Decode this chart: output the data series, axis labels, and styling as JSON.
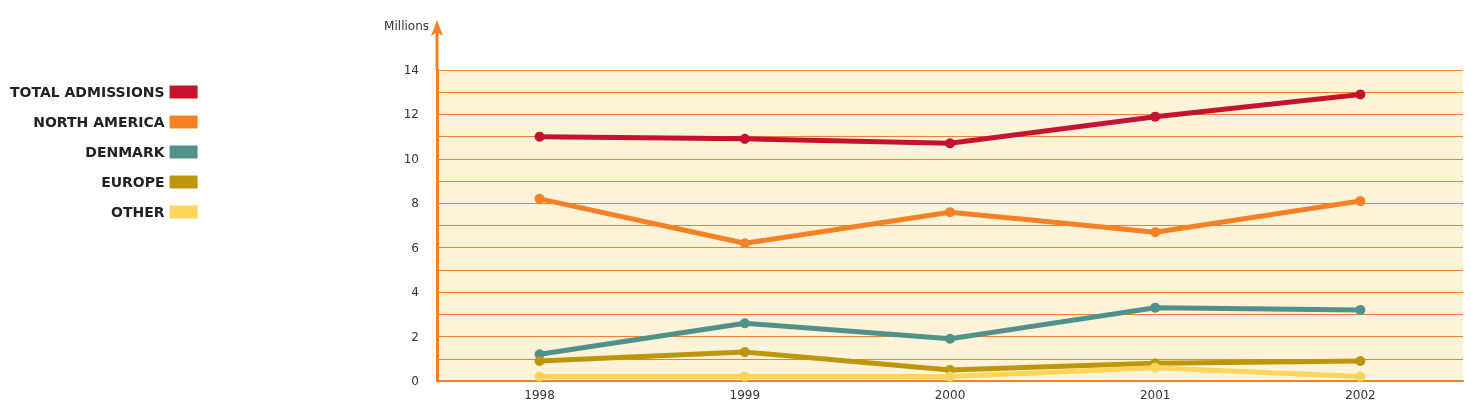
{
  "chart_data": {
    "type": "line",
    "ylabel": "Millions",
    "categories": [
      "1998",
      "1999",
      "2000",
      "2001",
      "2002"
    ],
    "series": [
      {
        "name": "TOTAL ADMISSIONS",
        "color": "#c4122f",
        "values": [
          11.0,
          10.9,
          10.7,
          11.9,
          12.9
        ]
      },
      {
        "name": "NORTH AMERICA",
        "color": "#f58025",
        "values": [
          8.2,
          6.2,
          7.6,
          6.7,
          8.1
        ]
      },
      {
        "name": "DENMARK",
        "color": "#50918c",
        "values": [
          1.2,
          2.6,
          1.9,
          3.3,
          3.2
        ]
      },
      {
        "name": "EUROPE",
        "color": "#bd960c",
        "values": [
          0.9,
          1.3,
          0.5,
          0.8,
          0.9
        ]
      },
      {
        "name": "OTHER",
        "color": "#fdd55c",
        "values": [
          0.2,
          0.2,
          0.2,
          0.6,
          0.2
        ]
      }
    ],
    "ylim": [
      0,
      14
    ],
    "yticks": [
      0,
      {
        "value": 1,
        "label": null
      },
      2,
      {
        "value": 3,
        "label": null
      },
      4,
      {
        "value": 5,
        "label": null
      },
      6,
      {
        "value": 7,
        "label": null
      },
      8,
      {
        "value": 9,
        "label": null
      },
      10,
      {
        "value": 11,
        "label": null
      },
      12,
      {
        "value": 13,
        "label": null
      },
      14
    ],
    "grid": "y",
    "legend": "left",
    "marker": "circle",
    "line_style": "solid"
  }
}
